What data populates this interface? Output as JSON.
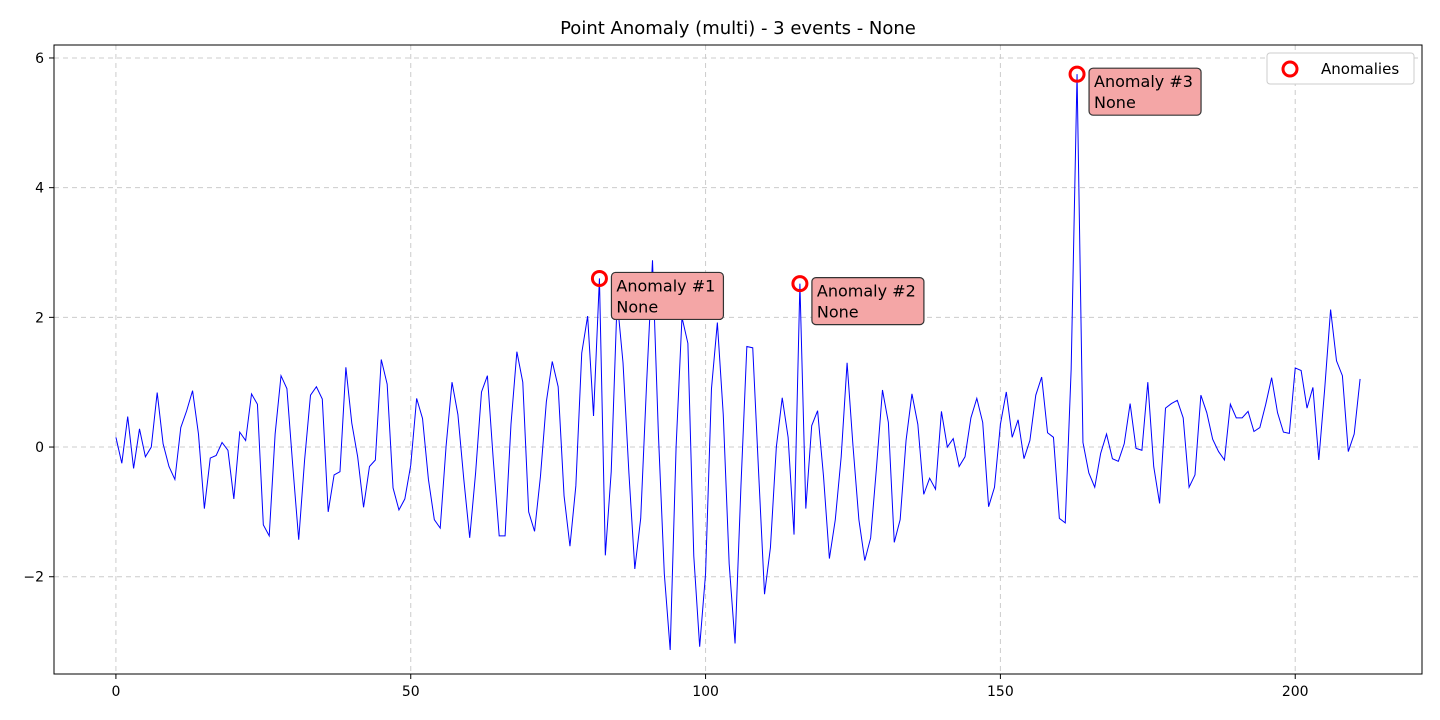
{
  "chart_data": {
    "type": "line",
    "title": "Point Anomaly (multi) - 3 events - None",
    "xlabel": "",
    "ylabel": "",
    "xlim": [
      -10.5,
      221.5
    ],
    "ylim": [
      -3.5,
      6.2
    ],
    "xticks": [
      0,
      50,
      100,
      150,
      200
    ],
    "yticks": [
      -2,
      0,
      2,
      4,
      6
    ],
    "xtick_labels": [
      "0",
      "50",
      "100",
      "150",
      "200"
    ],
    "ytick_labels": [
      "−2",
      "0",
      "2",
      "4",
      "6"
    ],
    "grid": true,
    "legend": {
      "position": "top-right",
      "entries": [
        "Anomalies"
      ]
    },
    "colors": {
      "line": "#0000ff",
      "anomaly": "#ff0000",
      "annotation_fill": "#f4a6a6",
      "grid": "#cccccc"
    },
    "series": [
      {
        "values": [
          0.15,
          -0.25,
          0.47,
          -0.33,
          0.28,
          -0.15,
          0.0,
          0.84,
          0.05,
          -0.3,
          -0.5,
          0.3,
          0.56,
          0.87,
          0.2,
          -0.95,
          -0.17,
          -0.13,
          0.07,
          -0.05,
          -0.8,
          0.23,
          0.1,
          0.82,
          0.66,
          -1.2,
          -1.37,
          0.2,
          1.1,
          0.9,
          -0.3,
          -1.43,
          -0.2,
          0.8,
          0.93,
          0.74,
          -1.0,
          -0.43,
          -0.38,
          1.23,
          0.37,
          -0.15,
          -0.93,
          -0.3,
          -0.2,
          1.35,
          0.97,
          -0.63,
          -0.97,
          -0.8,
          -0.28,
          0.75,
          0.44,
          -0.5,
          -1.12,
          -1.25,
          0.02,
          1.0,
          0.5,
          -0.5,
          -1.4,
          -0.4,
          0.85,
          1.1,
          -0.2,
          -1.37,
          -1.37,
          0.35,
          1.47,
          1.0,
          -1.0,
          -1.3,
          -0.45,
          0.7,
          1.32,
          0.93,
          -0.75,
          -1.53,
          -0.6,
          1.45,
          2.02,
          0.48,
          2.6,
          -1.67,
          -0.38,
          2.27,
          1.3,
          -0.4,
          -1.88,
          -1.1,
          0.98,
          2.88,
          0.2,
          -1.95,
          -3.13,
          0.0,
          2.0,
          1.6,
          -1.68,
          -3.08,
          -1.95,
          0.9,
          1.92,
          0.5,
          -1.8,
          -3.03,
          -0.6,
          1.55,
          1.53,
          -0.4,
          -2.27,
          -1.55,
          0.0,
          0.76,
          0.15,
          -1.35,
          2.52,
          -0.95,
          0.33,
          0.56,
          -0.45,
          -1.72,
          -1.12,
          -0.15,
          1.3,
          0.02,
          -1.12,
          -1.75,
          -1.4,
          -0.3,
          0.88,
          0.38,
          -1.47,
          -1.12,
          0.1,
          0.82,
          0.35,
          -0.73,
          -0.48,
          -0.65,
          0.55,
          0.0,
          0.13,
          -0.3,
          -0.15,
          0.45,
          0.75,
          0.38,
          -0.92,
          -0.62,
          0.35,
          0.85,
          0.15,
          0.42,
          -0.18,
          0.1,
          0.8,
          1.08,
          0.22,
          0.15,
          -1.1,
          -1.17,
          1.2,
          5.75,
          0.07,
          -0.4,
          -0.62,
          -0.1,
          0.2,
          -0.18,
          -0.22,
          0.05,
          0.67,
          -0.02,
          -0.05,
          1.0,
          -0.3,
          -0.87,
          0.6,
          0.67,
          0.72,
          0.45,
          -0.62,
          -0.43,
          0.8,
          0.53,
          0.12,
          -0.07,
          -0.2,
          0.66,
          0.45,
          0.45,
          0.55,
          0.24,
          0.3,
          0.66,
          1.07,
          0.53,
          0.23,
          0.21,
          1.22,
          1.18,
          0.6,
          0.92,
          -0.2,
          0.9,
          2.12,
          1.33,
          1.1,
          -0.07,
          0.2,
          1.05
        ]
      }
    ],
    "anomalies": [
      {
        "x": 82,
        "y": 2.6,
        "label": "Anomaly #1",
        "sublabel": "None"
      },
      {
        "x": 116,
        "y": 2.52,
        "label": "Anomaly #2",
        "sublabel": "None"
      },
      {
        "x": 163,
        "y": 5.75,
        "label": "Anomaly #3",
        "sublabel": "None"
      }
    ]
  }
}
